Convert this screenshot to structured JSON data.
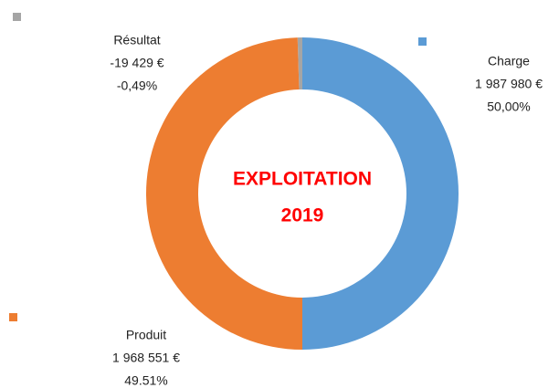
{
  "chart_data": {
    "type": "donut",
    "title_lines": [
      "EXPLOITATION",
      "2019"
    ],
    "categories": [
      "Charge",
      "Produit",
      "Résultat"
    ],
    "values": [
      1987980,
      1968551,
      -19429
    ],
    "value_labels": [
      "1 987 980 €",
      "1 968 551 €",
      "-19 429 €"
    ],
    "percentage_labels": [
      "50,00%",
      "49.51%",
      "-0,49%"
    ],
    "colors": [
      "#5b9bd5",
      "#ed7d31",
      "#a5a5a5"
    ]
  }
}
